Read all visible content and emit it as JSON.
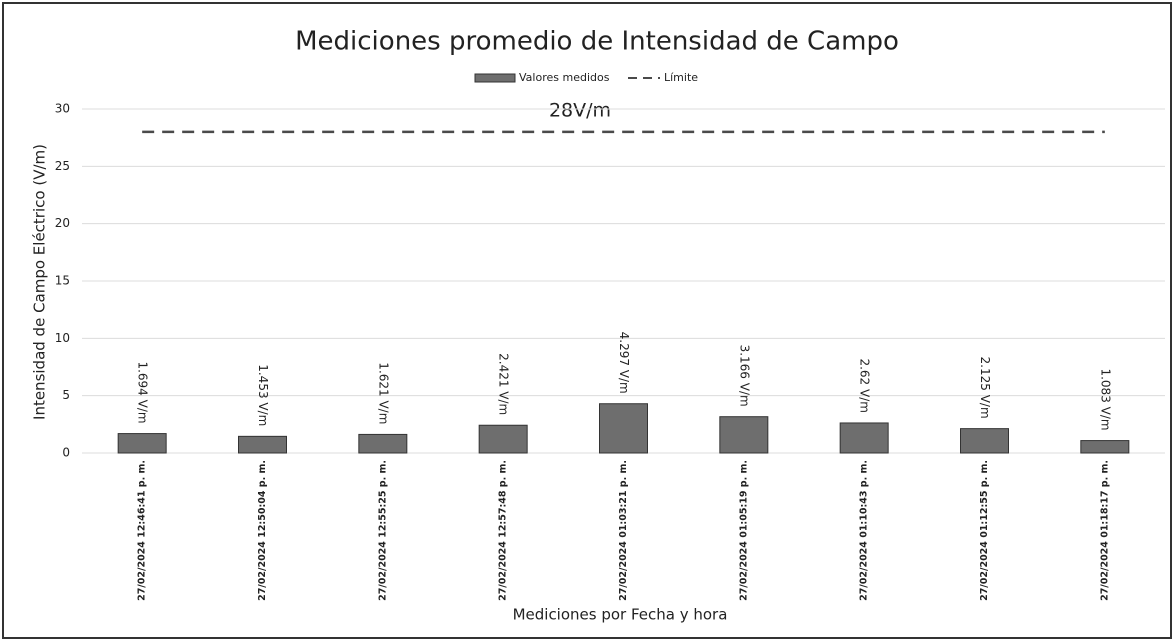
{
  "chart_data": {
    "type": "bar",
    "title": "Mediciones promedio de Intensidad de Campo",
    "x_label": "Mediciones por Fecha y hora",
    "y_label": "Intensidad de Campo Eléctrico (V/m)",
    "annotation": "28V/m",
    "categories": [
      "27/02/2024 12:46:41 p. m.",
      "27/02/2024 12:50:04 p. m.",
      "27/02/2024 12:55:25 p. m.",
      "27/02/2024 12:57:48 p. m.",
      "27/02/2024 01:03:21 p. m.",
      "27/02/2024 01:05:19 p. m.",
      "27/02/2024 01:10:43 p. m.",
      "27/02/2024 01:12:55 p. m.",
      "27/02/2024 01:18:17 p. m."
    ],
    "series": [
      {
        "name": "Valores medidos",
        "color": "#6e6e6e",
        "values": [
          1.694,
          1.453,
          1.621,
          2.421,
          4.297,
          3.166,
          2.62,
          2.125,
          1.083
        ],
        "value_labels": [
          "1.694 V/m",
          "1.453 V/m",
          "1.621 V/m",
          "2.421 V/m",
          "4.297 V/m",
          "3.166 V/m",
          "2.62 V/m",
          "2.125 V/m",
          "1.083 V/m"
        ]
      },
      {
        "name": "Límite",
        "type": "line",
        "dashed": true,
        "color": "#4a4a4a",
        "values": [
          28,
          28,
          28,
          28,
          28,
          28,
          28,
          28,
          28
        ]
      }
    ],
    "ylim": [
      0,
      30
    ],
    "yticks": [
      0,
      5,
      10,
      15,
      20,
      25,
      30
    ],
    "grid": true,
    "legend": "top"
  }
}
